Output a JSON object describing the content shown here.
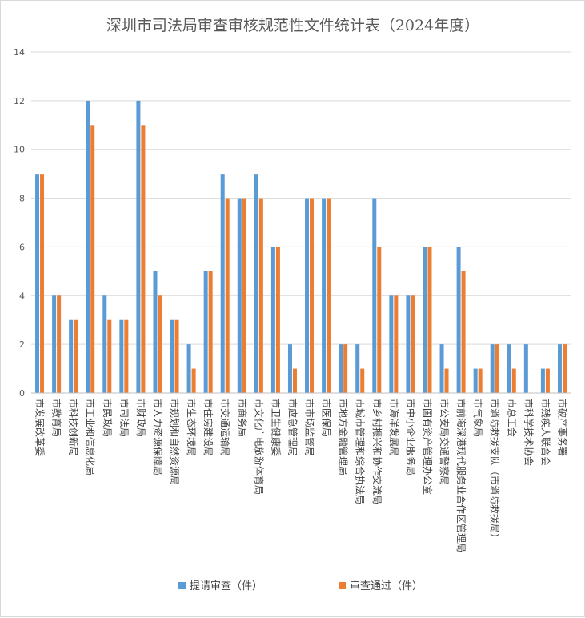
{
  "chart_data": {
    "type": "bar",
    "title": "深圳市司法局审查审核规范性文件统计表（2024年度）",
    "xlabel": "",
    "ylabel": "",
    "ylim": [
      0,
      14
    ],
    "yticks": [
      0,
      2,
      4,
      6,
      8,
      10,
      12,
      14
    ],
    "grid": true,
    "legend_position": "bottom",
    "categories": [
      "市发展改革委",
      "市教育局",
      "市科技创新局",
      "市工业和信息化局",
      "市民政局",
      "市司法局",
      "市财政局",
      "市人力资源保障局",
      "市规划和自然资源局",
      "市生态环境局",
      "市住房建设局",
      "市交通运输局",
      "市商务局",
      "市文化广电旅游体育局",
      "市卫生健康委",
      "市应急管理局",
      "市市场监管局",
      "市医保局",
      "市地方金融管理局",
      "市城市管理和综合执法局",
      "市乡村振兴和协作交流局",
      "市海洋发展局",
      "市中小企业服务局",
      "市国有资产管理办公室",
      "市公安局交通警察局",
      "市前海深港现代服务业合作区管理局",
      "市气象局",
      "市消防救援支队（市消防救援局）",
      "市总工会",
      "市科学技术协会",
      "市残疾人联合会",
      "市破产事务署"
    ],
    "series": [
      {
        "name": "提请审查（件）",
        "color": "#5b9bd5",
        "values": [
          9,
          4,
          3,
          12,
          4,
          3,
          12,
          5,
          3,
          2,
          5,
          9,
          8,
          9,
          6,
          2,
          8,
          8,
          2,
          2,
          8,
          4,
          4,
          6,
          2,
          6,
          1,
          2,
          2,
          2,
          1,
          2
        ]
      },
      {
        "name": "审查通过（件）",
        "color": "#ed7d31",
        "values": [
          9,
          4,
          3,
          11,
          3,
          3,
          11,
          4,
          3,
          1,
          5,
          8,
          8,
          8,
          6,
          1,
          8,
          8,
          2,
          1,
          6,
          4,
          4,
          6,
          1,
          5,
          1,
          2,
          1,
          0,
          1,
          2
        ]
      }
    ]
  }
}
